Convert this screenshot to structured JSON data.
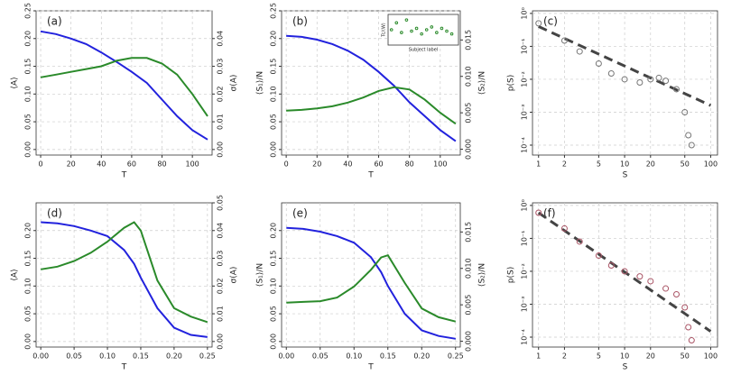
{
  "chart_data": [
    {
      "type": "line",
      "title": "(a)",
      "xlabel": "T",
      "ylabel": "⟨A⟩",
      "y2label": "σ(A)",
      "x": [
        0,
        10,
        20,
        30,
        40,
        50,
        60,
        70,
        80,
        90,
        100,
        110
      ],
      "series": [
        {
          "color": "#2222dd",
          "values": [
            0.213,
            0.208,
            0.2,
            0.19,
            0.175,
            0.158,
            0.14,
            0.12,
            0.09,
            0.06,
            0.035,
            0.018
          ]
        },
        {
          "color": "#2a8a2a",
          "axis": "y2",
          "values": [
            0.026,
            0.027,
            0.028,
            0.029,
            0.03,
            0.032,
            0.033,
            0.033,
            0.031,
            0.027,
            0.02,
            0.012
          ]
        }
      ],
      "xlim": [
        -3,
        113
      ],
      "xticks": [
        0,
        20,
        40,
        60,
        80,
        100
      ],
      "ylim": [
        -0.01,
        0.25
      ],
      "yticks": [
        {
          "value": 0,
          "label": "0.00"
        },
        0.05,
        {
          "value": 0.1,
          "label": "0.10"
        },
        0.15,
        {
          "value": 0.2,
          "label": "0.20"
        },
        0.25
      ],
      "y2lim": [
        -0.002,
        0.05
      ],
      "y2ticks": [
        {
          "value": 0,
          "label": "0.00"
        },
        0.01,
        0.02,
        0.03,
        0.04
      ],
      "grid": true
    },
    {
      "type": "line",
      "title": "(b)",
      "xlabel": "T",
      "ylabel": "⟨S₁⟩/N",
      "y2label": "⟨S₂⟩/N",
      "x": [
        0,
        10,
        20,
        30,
        40,
        50,
        60,
        70,
        80,
        90,
        100,
        110
      ],
      "series": [
        {
          "color": "#2222dd",
          "values": [
            0.205,
            0.203,
            0.198,
            0.19,
            0.178,
            0.162,
            0.14,
            0.115,
            0.085,
            0.06,
            0.035,
            0.015
          ]
        },
        {
          "color": "#2a8a2a",
          "axis": "y2",
          "values": [
            0.0053,
            0.0054,
            0.0056,
            0.0059,
            0.0064,
            0.0071,
            0.008,
            0.0085,
            0.0082,
            0.0068,
            0.005,
            0.0035
          ]
        }
      ],
      "xlim": [
        -3,
        113
      ],
      "xticks": [
        0,
        20,
        40,
        60,
        80,
        100
      ],
      "ylim": [
        -0.01,
        0.25
      ],
      "yticks": [
        {
          "value": 0,
          "label": "0.00"
        },
        0.05,
        {
          "value": 0.1,
          "label": "0.10"
        },
        0.15,
        {
          "value": 0.2,
          "label": "0.20"
        },
        0.25
      ],
      "y2lim": [
        -0.0008,
        0.019
      ],
      "y2ticks": [
        {
          "value": 0,
          "label": "0.000"
        },
        0.005,
        {
          "value": 0.01,
          "label": "0.010"
        },
        0.015
      ],
      "grid": true
    },
    {
      "type": "scatter",
      "title": "(c)",
      "xlabel": "S",
      "ylabel": "p(S)",
      "xlog": true,
      "ylog": true,
      "series": [
        {
          "color": "#777777",
          "x": [
            1,
            2,
            3,
            5,
            7,
            10,
            15,
            20,
            25,
            30,
            40,
            50,
            55,
            60
          ],
          "values": [
            0.5,
            0.15,
            0.07,
            0.03,
            0.015,
            0.01,
            0.008,
            0.01,
            0.011,
            0.009,
            0.005,
            0.001,
            0.0002,
            0.0001
          ]
        }
      ],
      "guide": {
        "color": "#444444",
        "x": [
          1,
          100
        ],
        "values": [
          0.4,
          0.0016
        ]
      },
      "xlim": [
        0.85,
        120
      ],
      "xticks": [
        1,
        2,
        5,
        10,
        20,
        50,
        100
      ],
      "ylim": [
        5e-05,
        1.2
      ],
      "yticks": [
        {
          "value": 1,
          "label": "10⁰"
        },
        {
          "value": 0.1,
          "label": "10⁻¹"
        },
        {
          "value": 0.01,
          "label": "10⁻²"
        },
        {
          "value": 0.001,
          "label": "10⁻³"
        },
        {
          "value": 0.0001,
          "label": "10⁻⁴"
        }
      ],
      "grid": true
    },
    {
      "type": "line",
      "title": "(d)",
      "xlabel": "T",
      "ylabel": "⟨A⟩",
      "y2label": "σ(A)",
      "x": [
        0,
        0.025,
        0.05,
        0.075,
        0.1,
        0.125,
        0.14,
        0.15,
        0.175,
        0.2,
        0.225,
        0.25
      ],
      "series": [
        {
          "color": "#2222dd",
          "values": [
            0.215,
            0.213,
            0.208,
            0.2,
            0.19,
            0.165,
            0.14,
            0.115,
            0.06,
            0.025,
            0.012,
            0.008
          ]
        },
        {
          "color": "#2a8a2a",
          "axis": "y2",
          "values": [
            0.026,
            0.027,
            0.029,
            0.032,
            0.036,
            0.041,
            0.043,
            0.04,
            0.022,
            0.012,
            0.009,
            0.007
          ]
        }
      ],
      "xlim": [
        -0.007,
        0.257
      ],
      "xticks": [
        {
          "value": 0,
          "label": "0.00"
        },
        0.05,
        {
          "value": 0.1,
          "label": "0.10"
        },
        0.15,
        {
          "value": 0.2,
          "label": "0.20"
        },
        0.25
      ],
      "ylim": [
        -0.01,
        0.25
      ],
      "yticks": [
        {
          "value": 0,
          "label": "0.00"
        },
        0.05,
        {
          "value": 0.1,
          "label": "0.10"
        },
        0.15,
        {
          "value": 0.2,
          "label": "0.20"
        }
      ],
      "y2lim": [
        -0.002,
        0.05
      ],
      "y2ticks": [
        {
          "value": 0,
          "label": "0.00"
        },
        0.01,
        0.02,
        0.03,
        0.04,
        0.05
      ],
      "grid": true
    },
    {
      "type": "line",
      "title": "(e)",
      "xlabel": "T",
      "ylabel": "⟨S₁⟩/N",
      "y2label": "⟨S₂⟩/N",
      "x": [
        0,
        0.025,
        0.05,
        0.075,
        0.1,
        0.125,
        0.14,
        0.15,
        0.175,
        0.2,
        0.225,
        0.25
      ],
      "series": [
        {
          "color": "#2222dd",
          "values": [
            0.205,
            0.203,
            0.198,
            0.19,
            0.178,
            0.152,
            0.125,
            0.1,
            0.05,
            0.02,
            0.01,
            0.005
          ]
        },
        {
          "color": "#2a8a2a",
          "axis": "y2",
          "values": [
            0.0053,
            0.0054,
            0.0055,
            0.006,
            0.0075,
            0.0098,
            0.0115,
            0.0118,
            0.008,
            0.0045,
            0.0033,
            0.0027
          ]
        }
      ],
      "xlim": [
        -0.007,
        0.257
      ],
      "xticks": [
        {
          "value": 0,
          "label": "0.00"
        },
        0.05,
        {
          "value": 0.1,
          "label": "0.10"
        },
        0.15,
        {
          "value": 0.2,
          "label": "0.20"
        },
        0.25
      ],
      "ylim": [
        -0.01,
        0.25
      ],
      "yticks": [
        {
          "value": 0,
          "label": "0.00"
        },
        0.05,
        {
          "value": 0.1,
          "label": "0.10"
        },
        0.15,
        {
          "value": 0.2,
          "label": "0.20"
        }
      ],
      "y2lim": [
        -0.0008,
        0.019
      ],
      "y2ticks": [
        {
          "value": 0,
          "label": "0.000"
        },
        0.005,
        {
          "value": 0.01,
          "label": "0.010"
        },
        0.015
      ],
      "grid": true
    },
    {
      "type": "scatter",
      "title": "(f)",
      "xlabel": "S",
      "ylabel": "p(S)",
      "xlog": true,
      "ylog": true,
      "series": [
        {
          "color": "#aa5566",
          "x": [
            1,
            2,
            3,
            5,
            7,
            10,
            15,
            20,
            30,
            40,
            50,
            55,
            60
          ],
          "values": [
            0.6,
            0.2,
            0.08,
            0.03,
            0.015,
            0.01,
            0.007,
            0.005,
            0.003,
            0.002,
            0.0008,
            0.0002,
            8e-05
          ]
        }
      ],
      "guide": {
        "color": "#444444",
        "x": [
          1,
          100
        ],
        "values": [
          0.6,
          0.00015
        ]
      },
      "xlim": [
        0.85,
        120
      ],
      "xticks": [
        1,
        2,
        5,
        10,
        20,
        50,
        100
      ],
      "ylim": [
        5e-05,
        1.2
      ],
      "yticks": [
        {
          "value": 1,
          "label": "10⁰"
        },
        {
          "value": 0.1,
          "label": "10⁻¹"
        },
        {
          "value": 0.01,
          "label": "10⁻²"
        },
        {
          "value": 0.001,
          "label": "10⁻³"
        },
        {
          "value": 0.0001,
          "label": "10⁻⁴"
        }
      ],
      "grid": true
    },
    {
      "type": "scatter",
      "xlabel": "Subject label",
      "ylabel": "Tc/⟨W⟩",
      "series": [
        {
          "color": "#2a8a2a",
          "x": [
            2,
            5,
            8,
            11,
            14,
            17,
            20,
            23,
            26,
            29,
            32,
            35,
            38
          ],
          "values": [
            1.05,
            1.3,
            0.95,
            1.4,
            1.0,
            1.1,
            0.9,
            1.05,
            1.15,
            0.95,
            1.1,
            1.0,
            0.9
          ]
        }
      ],
      "xlim": [
        0,
        42
      ],
      "ylim": [
        0.5,
        1.6
      ],
      "grid": false
    }
  ]
}
